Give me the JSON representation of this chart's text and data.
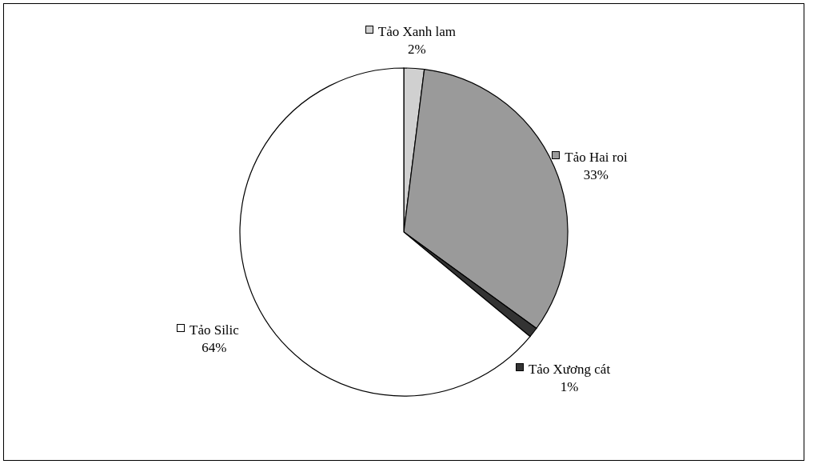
{
  "chart_data": {
    "type": "pie",
    "categories": [
      "Tảo Xanh lam",
      "Tảo Hai roi",
      "Tảo Xương cát",
      "Tảo Silic"
    ],
    "values": [
      2,
      33,
      1,
      64
    ],
    "colors": [
      "#d0d0d0",
      "#9a9a9a",
      "#333333",
      "#ffffff"
    ],
    "value_labels": [
      "2%",
      "33%",
      "1%",
      "64%"
    ],
    "legend": "right"
  }
}
